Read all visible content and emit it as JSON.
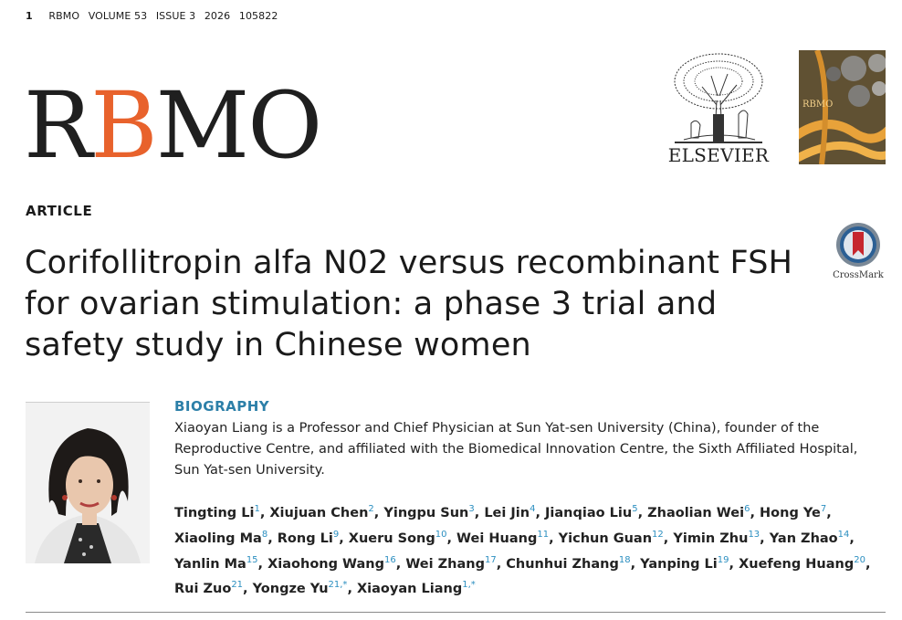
{
  "running_head": {
    "page": "1",
    "journal": "RBMO",
    "volume": "VOLUME 53",
    "issue": "ISSUE 3",
    "year": "2026",
    "article_id": "105822"
  },
  "logo": {
    "part1": "R",
    "accent": "B",
    "part2": "MO"
  },
  "publisher": {
    "name": "ELSEVIER"
  },
  "cover": {
    "mark": "RBMO"
  },
  "section_label": "ARTICLE",
  "title": "Corifollitropin alfa N02 versus recombinant FSH for ovarian stimulation: a phase 3 trial and safety study in Chinese women",
  "crossmark": {
    "label": "CrossMark"
  },
  "biography": {
    "label": "BIOGRAPHY",
    "text": "Xiaoyan Liang is a Professor and Chief Physician at Sun Yat-sen University (China), founder of the Reproductive Centre, and affiliated with the Biomedical Innovation Centre, the Sixth Affiliated Hospital, Sun Yat-sen University."
  },
  "authors": [
    {
      "name": "Tingting Li",
      "aff": "1"
    },
    {
      "name": "Xiujuan Chen",
      "aff": "2"
    },
    {
      "name": "Yingpu Sun",
      "aff": "3"
    },
    {
      "name": "Lei Jin",
      "aff": "4"
    },
    {
      "name": "Jianqiao Liu",
      "aff": "5"
    },
    {
      "name": "Zhaolian Wei",
      "aff": "6"
    },
    {
      "name": "Hong Ye",
      "aff": "7"
    },
    {
      "name": "Xiaoling Ma",
      "aff": "8"
    },
    {
      "name": "Rong Li",
      "aff": "9"
    },
    {
      "name": "Xueru Song",
      "aff": "10"
    },
    {
      "name": "Wei Huang",
      "aff": "11"
    },
    {
      "name": "Yichun Guan",
      "aff": "12"
    },
    {
      "name": "Yimin Zhu",
      "aff": "13"
    },
    {
      "name": "Yan Zhao",
      "aff": "14"
    },
    {
      "name": "Yanlin Ma",
      "aff": "15"
    },
    {
      "name": "Xiaohong Wang",
      "aff": "16"
    },
    {
      "name": "Wei Zhang",
      "aff": "17"
    },
    {
      "name": "Chunhui Zhang",
      "aff": "18"
    },
    {
      "name": "Yanping Li",
      "aff": "19"
    },
    {
      "name": "Xuefeng Huang",
      "aff": "20"
    },
    {
      "name": "Rui Zuo",
      "aff": "21"
    },
    {
      "name": "Yongze Yu",
      "aff": "21,*"
    },
    {
      "name": "Xiaoyan Liang",
      "aff": "1,*"
    }
  ]
}
